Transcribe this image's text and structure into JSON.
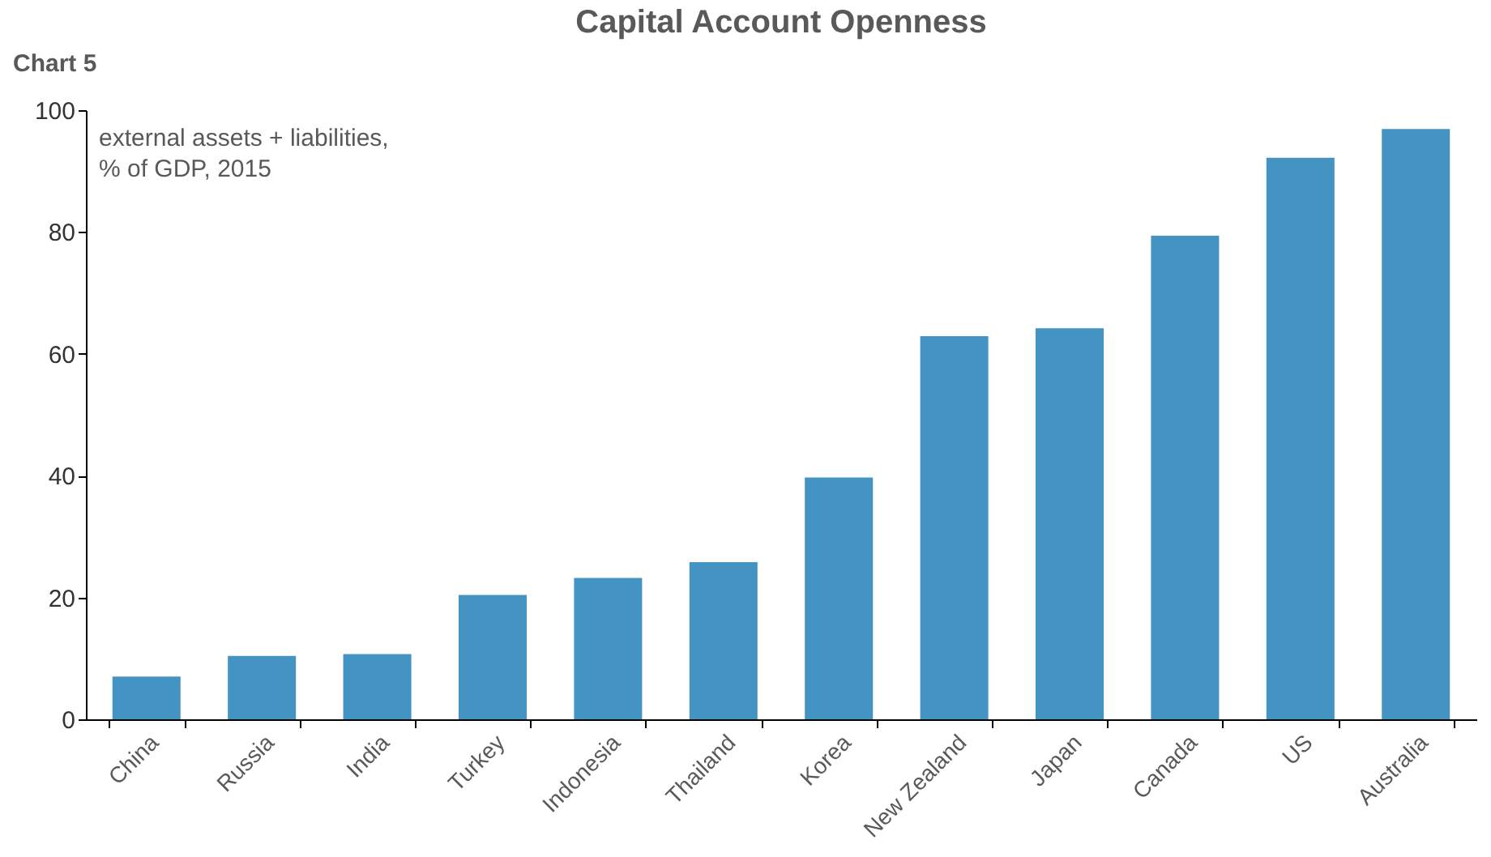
{
  "chart_data": {
    "type": "bar",
    "title": "Capital Account Openness",
    "annotations": [
      "Chart 5",
      "external assets + liabilities,\n% of GDP, 2015"
    ],
    "categories": [
      "China",
      "Russia",
      "India",
      "Turkey",
      "Indonesia",
      "Thailand",
      "Korea",
      "New Zealand",
      "Japan",
      "Canada",
      "US",
      "Australia"
    ],
    "values": [
      7.0,
      10.4,
      10.7,
      20.4,
      23.2,
      25.8,
      39.7,
      62.9,
      64.2,
      79.4,
      92.2,
      96.9
    ],
    "color": "#4393c3",
    "ylim": [
      0,
      100
    ],
    "yticks": [
      0,
      20,
      40,
      60,
      80,
      100
    ],
    "grid": false
  }
}
